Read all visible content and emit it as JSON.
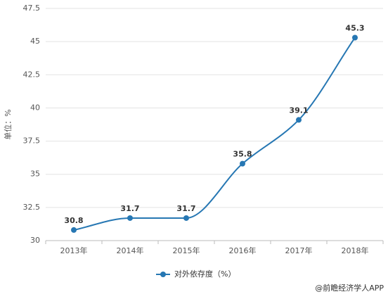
{
  "chart_data": {
    "type": "line",
    "y_label": "单位：%",
    "categories": [
      "2013年",
      "2014年",
      "2015年",
      "2016年",
      "2017年",
      "2018年"
    ],
    "series": [
      {
        "name": "对外依存度（%）",
        "color": "#2677b3",
        "values": [
          30.8,
          31.7,
          31.7,
          35.8,
          39.1,
          45.3
        ]
      }
    ],
    "ylim": [
      30,
      47.5
    ],
    "yticks": [
      30,
      32.5,
      35,
      37.5,
      40,
      42.5,
      45,
      47.5
    ],
    "grid": true,
    "source": "@前瞻经济学人APP"
  }
}
